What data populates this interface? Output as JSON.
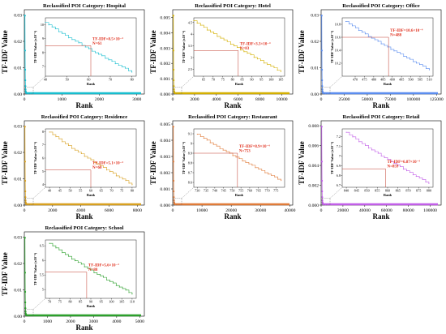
{
  "figure": {
    "y_label": "TF-IDF Value",
    "x_label": "Rank",
    "inset_y_label": "TF-IDF Value (x10⁻⁴)",
    "inset_x_label": "Rank"
  },
  "chart_data": [
    {
      "type": "line",
      "title": "Reclassified POI Category: Hospital",
      "color": "#17becf",
      "xlabel": "Rank",
      "ylabel": "TF-IDF Value",
      "xlim": [
        0,
        3200
      ],
      "ylim": [
        0,
        0.032
      ],
      "x_ticks": [
        0,
        1000,
        2000,
        3000
      ],
      "y_ticks": [
        0.0,
        0.01,
        0.02,
        0.03
      ],
      "y_tick_labels": [
        "0.00",
        "0.01",
        "0.02",
        "0.03"
      ],
      "inset": {
        "xlim": [
          40,
          82
        ],
        "ylim": [
          6.3,
          10.5
        ],
        "x_ticks": [
          40,
          50,
          60,
          70,
          80
        ],
        "y_ticks": [
          7,
          8,
          9,
          10
        ],
        "x_start": 40,
        "x_end": 80,
        "y_start": 10.2,
        "y_end": 6.6,
        "marker_x": 61,
        "marker_y": 8.5
      },
      "annotation": {
        "text": "TF-IDF=8.5×10⁻⁴",
        "n_text": "N=61",
        "rank": 61,
        "value": 0.00085
      }
    },
    {
      "type": "line",
      "title": "Reclassified POI Category: Hotel",
      "color": "#d4b000",
      "xlabel": "Rank",
      "ylabel": "TF-IDF Value",
      "xlim": [
        0,
        11000
      ],
      "ylim": [
        0,
        0.0055
      ],
      "x_ticks": [
        0,
        2000,
        4000,
        6000,
        8000,
        10000
      ],
      "y_ticks": [
        0.0,
        0.001,
        0.002,
        0.003,
        0.004,
        0.005
      ],
      "y_tick_labels": [
        "0.000",
        "0.001",
        "0.002",
        "0.003",
        "0.004",
        "0.005"
      ],
      "inset": {
        "xlim": [
          60,
          107
        ],
        "ylim": [
          2.2,
          4.7
        ],
        "x_ticks": [
          65,
          70,
          75,
          80,
          85,
          90,
          95,
          100,
          105
        ],
        "y_ticks": [
          2.5,
          3.0,
          3.5,
          4.0,
          4.5
        ],
        "x_start": 60,
        "x_end": 105,
        "y_start": 4.6,
        "y_end": 2.4,
        "marker_x": 83,
        "marker_y": 3.3
      },
      "annotation": {
        "text": "TF-IDF=3.3×10⁻⁴",
        "n_text": "N=83",
        "rank": 83,
        "value": 0.00033
      }
    },
    {
      "type": "line",
      "title": "Reclassified POI Category: Office",
      "color": "#5b8def",
      "xlabel": "Rank",
      "ylabel": "TF-IDF Value",
      "xlim": [
        0,
        130000
      ],
      "ylim": [
        0,
        0.032
      ],
      "x_ticks": [
        0,
        25000,
        50000,
        75000,
        100000,
        125000
      ],
      "y_ticks": [
        0.0,
        0.01,
        0.02,
        0.03
      ],
      "y_tick_labels": [
        "0.00",
        "0.01",
        "0.02",
        "0.03"
      ],
      "inset": {
        "xlim": [
          463,
          512
        ],
        "ylim": [
          10.0,
          10.9
        ],
        "x_ticks": [
          470,
          475,
          480,
          485,
          490,
          495,
          500,
          505,
          510
        ],
        "y_ticks": [
          10.2,
          10.4,
          10.6,
          10.8
        ],
        "x_start": 465,
        "x_end": 510,
        "y_start": 10.85,
        "y_end": 10.1,
        "marker_x": 488,
        "marker_y": 10.6
      },
      "annotation": {
        "text": "TF-IDF=10.6×10⁻⁴",
        "n_text": "N=488",
        "rank": 488,
        "value": 0.00106
      }
    },
    {
      "type": "line",
      "title": "Reclassified POI Category: Residence",
      "color": "#d8a020",
      "xlabel": "Rank",
      "ylabel": "TF-IDF Value",
      "xlim": [
        0,
        8500
      ],
      "ylim": [
        0,
        0.032
      ],
      "x_ticks": [
        0,
        2000,
        4000,
        6000,
        8000
      ],
      "y_ticks": [
        0.0,
        0.01,
        0.02,
        0.03
      ],
      "y_tick_labels": [
        "0.00",
        "0.01",
        "0.02",
        "0.03"
      ],
      "inset": {
        "xlim": [
          38,
          82
        ],
        "ylim": [
          3.8,
          8.2
        ],
        "x_ticks": [
          40,
          45,
          50,
          55,
          60,
          65,
          70,
          75,
          80
        ],
        "y_ticks": [
          4,
          5,
          6,
          7,
          8
        ],
        "x_start": 40,
        "x_end": 80,
        "y_start": 8.0,
        "y_end": 4.0,
        "marker_x": 60,
        "marker_y": 5.1
      },
      "annotation": {
        "text": "TF-IDF=5.1×10⁻⁴",
        "n_text": "N=60",
        "rank": 60,
        "value": 0.00051
      }
    },
    {
      "type": "line",
      "title": "Reclassified POI Category: Restaurant",
      "color": "#e07b39",
      "xlabel": "Rank",
      "ylabel": "TF-IDF Value",
      "xlim": [
        0,
        41000
      ],
      "ylim": [
        0,
        0.0052
      ],
      "x_ticks": [
        0,
        10000,
        20000,
        30000,
        40000
      ],
      "y_ticks": [
        0.0,
        0.001,
        0.002,
        0.003,
        0.004,
        0.005
      ],
      "y_tick_labels": [
        "0.000",
        "0.001",
        "0.002",
        "0.003",
        "0.004",
        "0.005"
      ],
      "inset": {
        "xlim": [
          728,
          780
        ],
        "ylim": [
          8.55,
          9.15
        ],
        "x_ticks": [
          730,
          735,
          740,
          745,
          750,
          755,
          760,
          765,
          770,
          775
        ],
        "y_ticks": [
          8.6,
          8.7,
          8.8,
          8.9,
          9.0,
          9.1
        ],
        "x_start": 730,
        "x_end": 778,
        "y_start": 9.1,
        "y_end": 8.62,
        "marker_x": 753,
        "marker_y": 8.9
      },
      "annotation": {
        "text": "TF-IDF=8.9×10⁻⁴",
        "n_text": "N=753",
        "rank": 753,
        "value": 0.00089
      }
    },
    {
      "type": "line",
      "title": "Reclassified POI Category: Retail",
      "color": "#c15ee8",
      "xlabel": "Rank",
      "ylabel": "TF-IDF Value",
      "xlim": [
        0,
        110000
      ],
      "ylim": [
        0,
        0.0085
      ],
      "x_ticks": [
        0,
        20000,
        40000,
        60000,
        80000,
        100000
      ],
      "y_ticks": [
        0.0,
        0.002,
        0.004,
        0.006,
        0.008
      ],
      "y_tick_labels": [
        "0.000",
        "0.002",
        "0.004",
        "0.006",
        "0.008"
      ],
      "inset": {
        "xlim": [
          838,
          882
        ],
        "ylim": [
          6.68,
          7.28
        ],
        "x_ticks": [
          840,
          845,
          850,
          855,
          860,
          865,
          870,
          875,
          880
        ],
        "y_ticks": [
          6.7,
          6.8,
          6.9,
          7.0,
          7.1,
          7.2
        ],
        "x_start": 840,
        "x_end": 880,
        "y_start": 7.25,
        "y_end": 6.72,
        "marker_x": 859,
        "marker_y": 6.87
      },
      "annotation": {
        "text": "TF-IDF=6.87×10⁻⁴",
        "n_text": "N=859",
        "rank": 859,
        "value": 0.000687
      }
    },
    {
      "type": "line",
      "title": "Reclassified POI Category: School",
      "color": "#2ca02c",
      "xlabel": "Rank",
      "ylabel": "TF-IDF Value",
      "xlim": [
        0,
        5200
      ],
      "ylim": [
        0,
        0.032
      ],
      "x_ticks": [
        0,
        1000,
        2000,
        3000,
        4000,
        5000
      ],
      "y_ticks": [
        0.0,
        0.01,
        0.02,
        0.03
      ],
      "y_tick_labels": [
        "0.00",
        "0.01",
        "0.02",
        "0.03"
      ],
      "inset": {
        "xlim": [
          68,
          112
        ],
        "ylim": [
          4.7,
          6.7
        ],
        "x_ticks": [
          70,
          75,
          80,
          85,
          90,
          95,
          100,
          105,
          110
        ],
        "y_ticks": [
          5.0,
          5.5,
          6.0,
          6.5
        ],
        "x_start": 70,
        "x_end": 110,
        "y_start": 6.6,
        "y_end": 4.85,
        "marker_x": 88,
        "marker_y": 5.6
      },
      "annotation": {
        "text": "TF-IDF=5.6×10⁻⁴",
        "n_text": "N=88",
        "rank": 88,
        "value": 0.00056
      }
    }
  ]
}
